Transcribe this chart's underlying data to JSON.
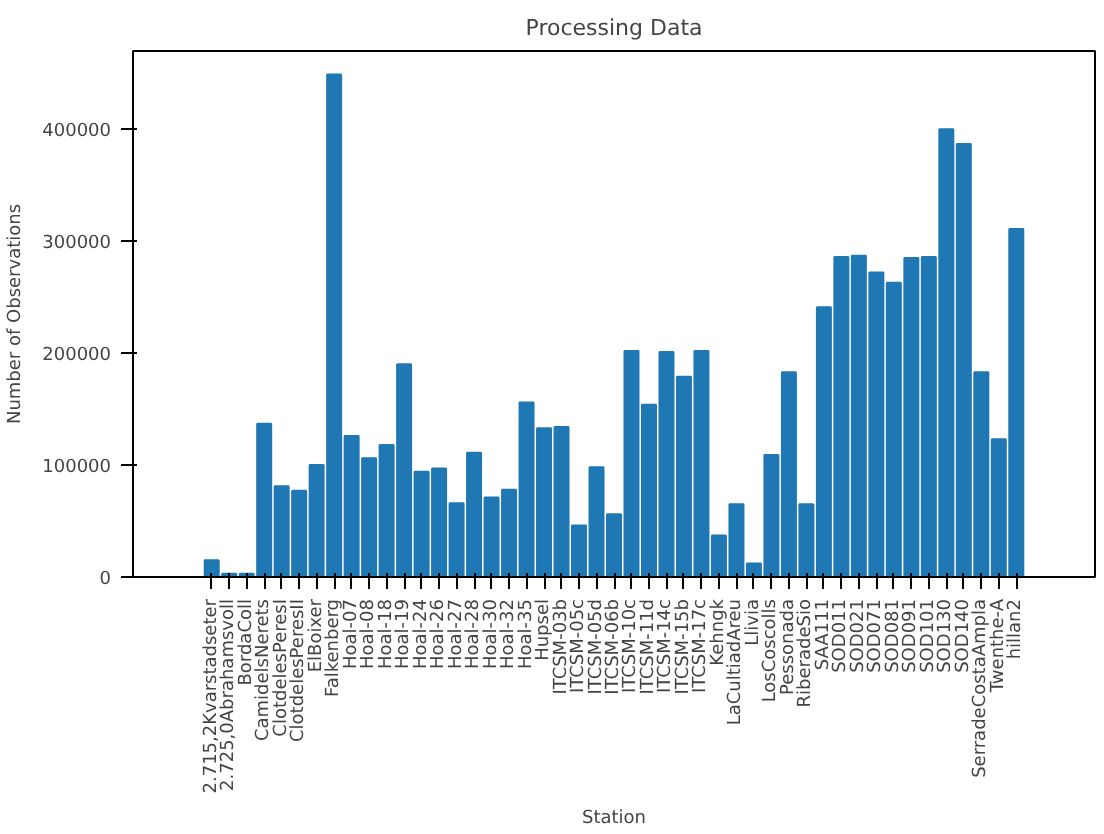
{
  "chart_data": {
    "type": "bar",
    "title": "Processing Data",
    "xlabel": "Station",
    "ylabel": "Number of Observations",
    "categories": [
      "2.715,2Kvarstadseter",
      "2.725,0Abrahamsvoll",
      "BordaColl",
      "CamidelsNerets",
      "ClotdelesPeresI",
      "ClotdelesPeresII",
      "ElBoixer",
      "Falkenberg",
      "Hoal-07",
      "Hoal-08",
      "Hoal-18",
      "Hoal-19",
      "Hoal-24",
      "Hoal-26",
      "Hoal-27",
      "Hoal-28",
      "Hoal-30",
      "Hoal-32",
      "Hoal-35",
      "Hupsel",
      "ITCSM-03b",
      "ITCSM-05c",
      "ITCSM-05d",
      "ITCSM-06b",
      "ITCSM-10c",
      "ITCSM-11d",
      "ITCSM-14c",
      "ITCSM-15b",
      "ITCSM-17c",
      "Kehngk",
      "LaCultiadAreu",
      "Llivia",
      "LosCoscolls",
      "Pessonada",
      "RiberadeSio",
      "SAA111",
      "SOD011",
      "SOD021",
      "SOD071",
      "SOD081",
      "SOD091",
      "SOD101",
      "SOD130",
      "SOD140",
      "SerradeCostaAmpla",
      "Twenthe-A",
      "hillan2"
    ],
    "values": [
      15000,
      3000,
      3000,
      137000,
      81000,
      77000,
      100000,
      449000,
      126000,
      106000,
      118000,
      190000,
      94000,
      97000,
      66000,
      111000,
      71000,
      78000,
      156000,
      133000,
      134000,
      46000,
      98000,
      56000,
      202000,
      154000,
      201000,
      179000,
      202000,
      37000,
      65000,
      12000,
      109000,
      183000,
      65000,
      241000,
      286000,
      287000,
      272000,
      263000,
      285000,
      286000,
      400000,
      387000,
      183000,
      123000,
      311000
    ],
    "color": "#1f77b4",
    "ylim": [
      0,
      470000
    ],
    "yticks": [
      0,
      100000,
      200000,
      300000,
      400000
    ],
    "grid": false
  }
}
